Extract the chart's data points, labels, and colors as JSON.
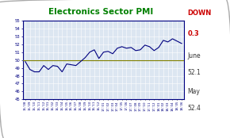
{
  "title": "Electronics Sector PMI",
  "title_color": "#008000",
  "title_fontsize": 7.5,
  "line_color": "#000080",
  "line_width": 0.8,
  "ref_line_y": 50,
  "ref_line_color": "#808000",
  "ylim": [
    45,
    55
  ],
  "yticks": [
    45,
    46,
    47,
    48,
    49,
    50,
    51,
    52,
    53,
    54,
    55
  ],
  "background_color": "#ffffff",
  "plot_bg_color": "#dce6f1",
  "border_color": "#000080",
  "grid_color": "#ffffff",
  "x_labels": [
    "15-'08",
    "15-'09",
    "15-'10",
    "15-'11",
    "15-'12",
    "16-'01",
    "16-'02",
    "16-'03",
    "16-'04",
    "16-'05",
    "16-'06",
    "16-'07",
    "16-'08",
    "16-'09",
    "16-'10",
    "16-'11",
    "16-'12",
    "17-'01",
    "17-'02",
    "17-'03",
    "17-'04",
    "17-'05",
    "17-'06",
    "17-'07",
    "17-'08",
    "17-'09",
    "17-'10",
    "17-'11",
    "17-'12",
    "18-'01",
    "18-'02",
    "18-'03",
    "18-'04",
    "18-'05",
    "18-'06"
  ],
  "values": [
    49.8,
    48.8,
    48.5,
    48.5,
    49.3,
    48.8,
    49.3,
    49.2,
    48.5,
    49.5,
    49.4,
    49.3,
    49.8,
    50.3,
    51.0,
    51.3,
    50.2,
    51.0,
    51.1,
    50.8,
    51.5,
    51.7,
    51.5,
    51.6,
    51.2,
    51.3,
    51.9,
    51.7,
    51.2,
    51.6,
    52.5,
    52.3,
    52.7,
    52.4,
    52.1
  ],
  "side_label_down": "DOWN",
  "side_label_change": "0.3",
  "side_label_month1": "June",
  "side_label_val1": "52.1",
  "side_label_month2": "May",
  "side_label_val2": "52.4",
  "down_color": "#cc0000",
  "side_text_color": "#333333"
}
